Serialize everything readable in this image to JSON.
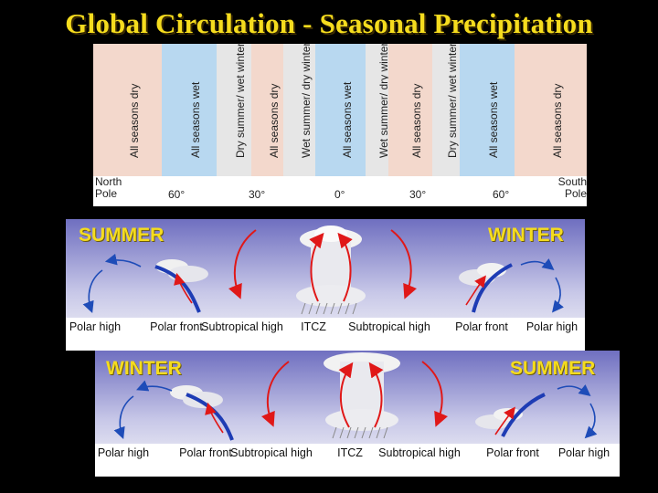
{
  "title": "Global Circulation - Seasonal Precipitation",
  "bands": [
    {
      "label": "All seasons dry",
      "color": "#f3d8cc"
    },
    {
      "label": "All seasons wet",
      "color": "#b8d8f0"
    },
    {
      "label": "Dry summer/ wet winter",
      "color": "#e6e6e6"
    },
    {
      "label": "All seasons dry",
      "color": "#f3d8cc"
    },
    {
      "label": "Wet summer/ dry winter",
      "color": "#e6e6e6"
    },
    {
      "label": "All seasons wet",
      "color": "#b8d8f0"
    },
    {
      "label": "Wet summer/ dry winter",
      "color": "#e6e6e6"
    },
    {
      "label": "All seasons dry",
      "color": "#f3d8cc"
    },
    {
      "label": "Dry summer/ wet winter",
      "color": "#e6e6e6"
    },
    {
      "label": "All seasons wet",
      "color": "#b8d8f0"
    },
    {
      "label": "All seasons dry",
      "color": "#f3d8cc"
    }
  ],
  "latitudes": {
    "north_pole": "North Pole",
    "lat60n": "60°",
    "lat30n": "30°",
    "eq": "0°",
    "lat30s": "30°",
    "lat60s": "60°",
    "south_pole": "South Pole"
  },
  "panel_top": {
    "left_season": "SUMMER",
    "right_season": "WINTER",
    "labels": [
      "Polar high",
      "Polar front",
      "Subtropical high",
      "ITCZ",
      "Subtropical high",
      "Polar front",
      "Polar high"
    ]
  },
  "panel_bottom": {
    "left_season": "WINTER",
    "right_season": "SUMMER",
    "labels": [
      "Polar high",
      "Polar front",
      "Subtropical high",
      "ITCZ",
      "Subtropical high",
      "Polar front",
      "Polar high"
    ]
  },
  "colors": {
    "title": "#f5dc1e",
    "season_text": "#f5dc1e",
    "front": "#1e3cb4",
    "warm_arrow": "#e01818",
    "cold_arrow": "#1e4cb8"
  },
  "icons": [
    "cloud-icon",
    "rain-icon",
    "front-line-icon",
    "warm-air-arrow-icon",
    "cold-air-arrow-icon"
  ]
}
